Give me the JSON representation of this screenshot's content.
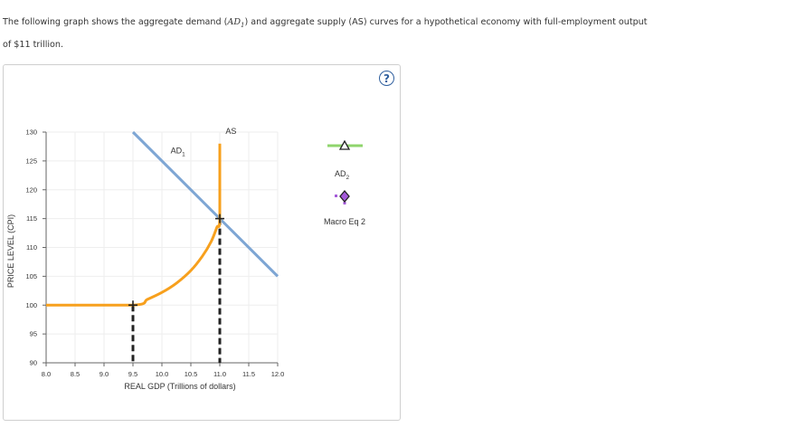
{
  "question": {
    "text_before": "The following graph shows the aggregate demand (",
    "math": "AD",
    "math_sub": "1",
    "text_after": ") and aggregate supply (AS) curves for a hypothetical economy with full-employment output",
    "line2": "of $11 trillion."
  },
  "help_label": "?",
  "colors": {
    "ad": "#7ea6d4",
    "as": "#f7a01d",
    "ad2_tool": "#8fd46c",
    "eq_tool": "#a45ad9",
    "grid": "#eeeeee",
    "dashed": "#222222"
  },
  "legend": {
    "ad2": {
      "label": "AD",
      "sub": "2"
    },
    "eq": {
      "label": "Macro Eq 2"
    }
  },
  "chart_data": {
    "type": "line",
    "xlabel": "REAL GDP (Trillions of dollars)",
    "ylabel": "PRICE LEVEL (CPI)",
    "xlim": [
      8.0,
      12.0
    ],
    "ylim": [
      90,
      130
    ],
    "xticks": [
      "8.0",
      "8.5",
      "9.0",
      "9.5",
      "10.0",
      "10.5",
      "11.0",
      "11.5",
      "12.0"
    ],
    "yticks": [
      "90",
      "95",
      "100",
      "105",
      "110",
      "115",
      "120",
      "125",
      "130"
    ],
    "grid": true,
    "series": [
      {
        "name": "AD",
        "sub": "1",
        "points": [
          [
            9.5,
            130
          ],
          [
            12.0,
            105
          ]
        ]
      },
      {
        "name": "AS",
        "points": [
          [
            8.0,
            100
          ],
          [
            9.5,
            100
          ],
          [
            9.75,
            101
          ],
          [
            10.0,
            102.2
          ],
          [
            10.25,
            103.8
          ],
          [
            10.5,
            106
          ],
          [
            10.7,
            108.5
          ],
          [
            10.85,
            111
          ],
          [
            10.95,
            113.5
          ],
          [
            11.0,
            115
          ],
          [
            11.0,
            128
          ]
        ]
      }
    ],
    "markers": [
      {
        "x": 9.5,
        "y": 100
      },
      {
        "x": 11.0,
        "y": 115
      }
    ],
    "dashed_verticals": [
      {
        "x": 9.5,
        "from": 90,
        "to": 100
      },
      {
        "x": 11.0,
        "from": 90,
        "to": 115
      }
    ]
  }
}
